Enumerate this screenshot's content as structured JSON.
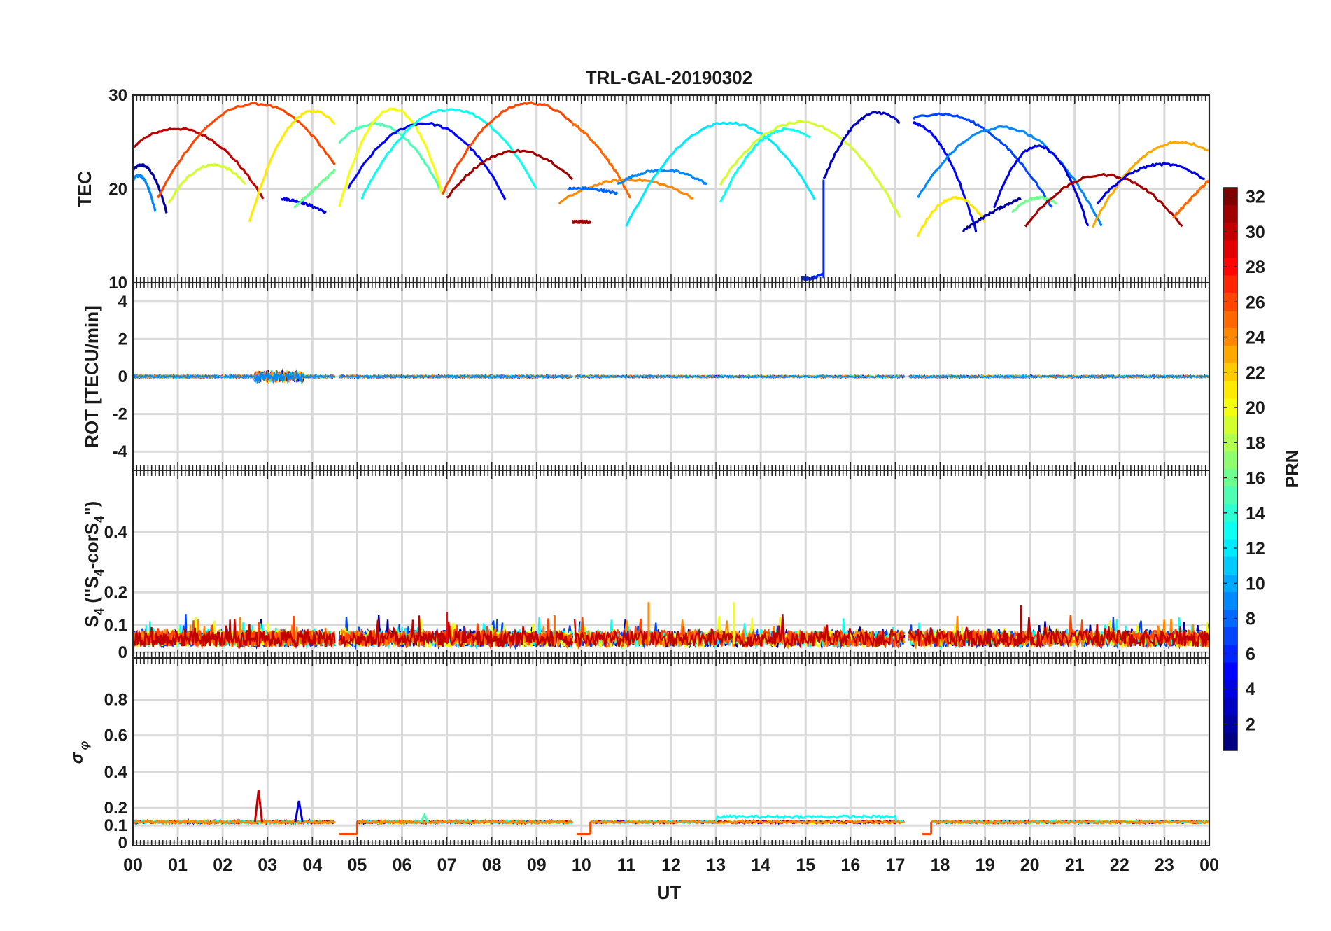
{
  "chart_data": {
    "type": "line",
    "title": "TRL-GAL-20190302",
    "xlabel": "UT",
    "x_tick_labels": [
      "00",
      "01",
      "02",
      "03",
      "04",
      "05",
      "06",
      "07",
      "08",
      "09",
      "10",
      "11",
      "12",
      "13",
      "14",
      "15",
      "16",
      "17",
      "18",
      "19",
      "20",
      "21",
      "22",
      "23",
      "00"
    ],
    "xlim": [
      0,
      24
    ],
    "colorbar": {
      "label": "PRN",
      "range": [
        1,
        32
      ],
      "tick_labels": [
        "2",
        "4",
        "6",
        "8",
        "10",
        "12",
        "14",
        "16",
        "18",
        "20",
        "22",
        "24",
        "26",
        "28",
        "30",
        "32"
      ],
      "colormap": "jet"
    },
    "panels": [
      {
        "ylabel": "TEC",
        "ylim": [
          10,
          30
        ],
        "y_tick_labels": [
          "10",
          "20",
          "30"
        ],
        "arcs": [
          {
            "prn": 2,
            "t0": 0.0,
            "t1": 0.75,
            "v0": 22,
            "vpeak": 22,
            "v1": 17.5
          },
          {
            "prn": 9,
            "t0": 0.0,
            "t1": 0.5,
            "v0": 21,
            "vpeak": 21,
            "v1": 17.5
          },
          {
            "prn": 30,
            "t0": 0.0,
            "t1": 2.9,
            "v0": 24.5,
            "vpeak": 26,
            "v1": 19
          },
          {
            "prn": 26,
            "t0": 0.55,
            "t1": 4.5,
            "v0": 19,
            "vpeak": 29,
            "v1": 22.5
          },
          {
            "prn": 19,
            "t0": 0.8,
            "t1": 2.5,
            "v0": 18.5,
            "vpeak": 22.5,
            "v1": 20.5
          },
          {
            "prn": 21,
            "t0": 2.6,
            "t1": 4.5,
            "v0": 16.5,
            "vpeak": 27,
            "v1": 27
          },
          {
            "prn": 4,
            "t0": 3.3,
            "t1": 4.3,
            "v0": 19,
            "vpeak": 18.5,
            "v1": 17.5
          },
          {
            "prn": 16,
            "t0": 3.6,
            "t1": 4.5,
            "v0": 18,
            "vpeak": 20,
            "v1": 22
          },
          {
            "prn": 15,
            "t0": 4.6,
            "t1": 6.9,
            "v0": 25,
            "vpeak": 26.5,
            "v1": 19.5
          },
          {
            "prn": 20,
            "t0": 4.6,
            "t1": 6.9,
            "v0": 18,
            "vpeak": 28.5,
            "v1": 19.5
          },
          {
            "prn": 5,
            "t0": 4.8,
            "t1": 8.3,
            "v0": 20,
            "vpeak": 27,
            "v1": 19
          },
          {
            "prn": 13,
            "t0": 5.1,
            "t1": 9.0,
            "v0": 19,
            "vpeak": 28.5,
            "v1": 20
          },
          {
            "prn": 31,
            "t0": 7.0,
            "t1": 9.8,
            "v0": 19,
            "vpeak": 24,
            "v1": 21
          },
          {
            "prn": 26,
            "t0": 6.9,
            "t1": 9.8,
            "v0": 19.5,
            "vpeak": 28.5,
            "v1": 27
          },
          {
            "prn": 25,
            "t0": 9.8,
            "t1": 11.1,
            "v0": 27,
            "vpeak": 24,
            "v1": 19
          },
          {
            "prn": 24,
            "t0": 9.5,
            "t1": 12.5,
            "v0": 18.5,
            "vpeak": 21,
            "v1": 19
          },
          {
            "prn": 8,
            "t0": 9.7,
            "t1": 10.8,
            "v0": 20,
            "vpeak": 20,
            "v1": 19.5
          },
          {
            "prn": 9,
            "t0": 10.8,
            "t1": 12.8,
            "v0": 20.5,
            "vpeak": 22,
            "v1": 20.5
          },
          {
            "prn": 31,
            "t0": 9.8,
            "t1": 10.2,
            "v0": 16.5,
            "vpeak": 16.5,
            "v1": 16.5
          },
          {
            "prn": 12,
            "t0": 11.0,
            "t1": 15.2,
            "v0": 16,
            "vpeak": 27,
            "v1": 19
          },
          {
            "prn": 13,
            "t0": 13.1,
            "t1": 15.1,
            "v0": 18.5,
            "vpeak": 25.5,
            "v1": 25.5
          },
          {
            "prn": 19,
            "t0": 13.1,
            "t1": 17.1,
            "v0": 20.5,
            "vpeak": 27,
            "v1": 17
          },
          {
            "prn": 3,
            "t0": 15.4,
            "t1": 17.1,
            "v0": 21,
            "vpeak": 27.5,
            "v1": 27
          },
          {
            "prn": 6,
            "t0": 14.9,
            "t1": 15.4,
            "v0": 10.5,
            "vpeak": 10.5,
            "v1": 11
          },
          {
            "prn": 7,
            "t0": 17.4,
            "t1": 20.5,
            "v0": 27.5,
            "vpeak": 26.5,
            "v1": 18
          },
          {
            "prn": 5,
            "t0": 17.4,
            "t1": 18.8,
            "v0": 27,
            "vpeak": 24,
            "v1": 15.5
          },
          {
            "prn": 9,
            "t0": 17.5,
            "t1": 21.6,
            "v0": 19,
            "vpeak": 26.5,
            "v1": 16
          },
          {
            "prn": 21,
            "t0": 17.5,
            "t1": 19.0,
            "v0": 15,
            "vpeak": 19,
            "v1": 16.5
          },
          {
            "prn": 2,
            "t0": 18.5,
            "t1": 19.8,
            "v0": 15.5,
            "vpeak": 17.5,
            "v1": 19
          },
          {
            "prn": 4,
            "t0": 19.2,
            "t1": 21.3,
            "v0": 18,
            "vpeak": 24.5,
            "v1": 16
          },
          {
            "prn": 16,
            "t0": 19.6,
            "t1": 20.6,
            "v0": 17.5,
            "vpeak": 19,
            "v1": 18.5
          },
          {
            "prn": 31,
            "t0": 19.9,
            "t1": 23.4,
            "v0": 16,
            "vpeak": 21.5,
            "v1": 16
          },
          {
            "prn": 23,
            "t0": 21.4,
            "t1": 24.0,
            "v0": 16,
            "vpeak": 24,
            "v1": 24
          },
          {
            "prn": 4,
            "t0": 21.5,
            "t1": 23.9,
            "v0": 18.5,
            "vpeak": 22.5,
            "v1": 21
          },
          {
            "prn": 25,
            "t0": 23.2,
            "t1": 24.0,
            "v0": 17,
            "vpeak": 19,
            "v1": 21
          }
        ]
      },
      {
        "ylabel": "ROT [TECU/min]",
        "ylim": [
          -5,
          5
        ],
        "y_tick_labels": [
          "-4",
          "-2",
          "0",
          "2",
          "4"
        ],
        "baseline": 0,
        "noise_amplitude": 0.12,
        "bursts": [
          {
            "t0": 2.7,
            "t1": 3.8,
            "amplitude": 0.8,
            "prn": 27
          }
        ]
      },
      {
        "ylabel": "S4 (\"S4-corS4\")",
        "ylabel_main": "S",
        "ylabel_sub1": "4",
        "ylabel_mid": " (\"S",
        "ylabel_sub2": "4",
        "ylabel_mid2": "-corS",
        "ylabel_sub3": "4",
        "ylabel_end": "\")",
        "ylim": [
          0,
          0.6
        ],
        "y_tick_labels": [
          "0",
          "0.1",
          "0.2",
          "0.4"
        ],
        "typical_level": 0.05,
        "peak_level": 0.17
      },
      {
        "ylabel": "σ φ",
        "ylabel_sigma": "σ",
        "ylabel_sub": "φ",
        "ylim": [
          0,
          1
        ],
        "y_tick_labels": [
          "0",
          "0.1",
          "0.2",
          "0.4",
          "0.6",
          "0.8"
        ],
        "baseline": 0.12,
        "spikes": [
          {
            "t": 2.8,
            "value": 0.3,
            "prn": 30
          },
          {
            "t": 3.7,
            "value": 0.24,
            "prn": 4
          },
          {
            "t": 6.5,
            "value": 0.16,
            "prn": 15
          }
        ],
        "gaps": [
          {
            "t0": 4.6,
            "t1": 5.0,
            "value": 0.05
          },
          {
            "t0": 9.9,
            "t1": 10.2,
            "value": 0.05
          },
          {
            "t0": 17.6,
            "t1": 17.8,
            "value": 0.05
          }
        ]
      }
    ]
  }
}
